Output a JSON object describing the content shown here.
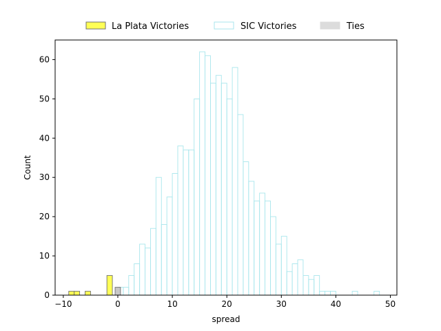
{
  "chart_data": {
    "type": "bar",
    "xlabel": "spread",
    "ylabel": "Count",
    "xlim": [
      -11.5,
      51.2
    ],
    "ylim": [
      0,
      65
    ],
    "xticks": [
      -10,
      0,
      10,
      20,
      30,
      40,
      50
    ],
    "yticks": [
      0,
      10,
      20,
      30,
      40,
      50,
      60
    ],
    "bin_width": 1,
    "grid": false,
    "legend_placement": "top-center-outside",
    "series": [
      {
        "name": "La Plata Victories",
        "fill": "#ffff55",
        "stroke": "#707070",
        "bins": [
          {
            "x": -9,
            "count": 1
          },
          {
            "x": -8,
            "count": 1
          },
          {
            "x": -6,
            "count": 1
          },
          {
            "x": -2,
            "count": 5
          }
        ]
      },
      {
        "name": "SIC Victories",
        "fill": "none",
        "stroke": "#a8e6ec",
        "bins": [
          {
            "x": 0,
            "count": 2
          },
          {
            "x": 1,
            "count": 2
          },
          {
            "x": 2,
            "count": 5
          },
          {
            "x": 3,
            "count": 8
          },
          {
            "x": 4,
            "count": 13
          },
          {
            "x": 5,
            "count": 12
          },
          {
            "x": 6,
            "count": 17
          },
          {
            "x": 7,
            "count": 30
          },
          {
            "x": 8,
            "count": 18
          },
          {
            "x": 9,
            "count": 25
          },
          {
            "x": 10,
            "count": 31
          },
          {
            "x": 11,
            "count": 38
          },
          {
            "x": 12,
            "count": 37
          },
          {
            "x": 13,
            "count": 37
          },
          {
            "x": 14,
            "count": 50
          },
          {
            "x": 15,
            "count": 62
          },
          {
            "x": 16,
            "count": 61
          },
          {
            "x": 17,
            "count": 54
          },
          {
            "x": 18,
            "count": 56
          },
          {
            "x": 19,
            "count": 54
          },
          {
            "x": 20,
            "count": 50
          },
          {
            "x": 21,
            "count": 58
          },
          {
            "x": 22,
            "count": 46
          },
          {
            "x": 23,
            "count": 34
          },
          {
            "x": 24,
            "count": 29
          },
          {
            "x": 25,
            "count": 24
          },
          {
            "x": 26,
            "count": 26
          },
          {
            "x": 27,
            "count": 24
          },
          {
            "x": 28,
            "count": 20
          },
          {
            "x": 29,
            "count": 13
          },
          {
            "x": 30,
            "count": 15
          },
          {
            "x": 31,
            "count": 6
          },
          {
            "x": 32,
            "count": 8
          },
          {
            "x": 33,
            "count": 9
          },
          {
            "x": 34,
            "count": 5
          },
          {
            "x": 35,
            "count": 4
          },
          {
            "x": 36,
            "count": 5
          },
          {
            "x": 37,
            "count": 1
          },
          {
            "x": 38,
            "count": 1
          },
          {
            "x": 39,
            "count": 1
          },
          {
            "x": 43,
            "count": 1
          },
          {
            "x": 47,
            "count": 1
          }
        ]
      },
      {
        "name": "Ties",
        "fill": "#c8c8c8",
        "stroke": "#707070",
        "bins": [
          {
            "x": -0.5,
            "count": 2
          }
        ]
      }
    ]
  }
}
